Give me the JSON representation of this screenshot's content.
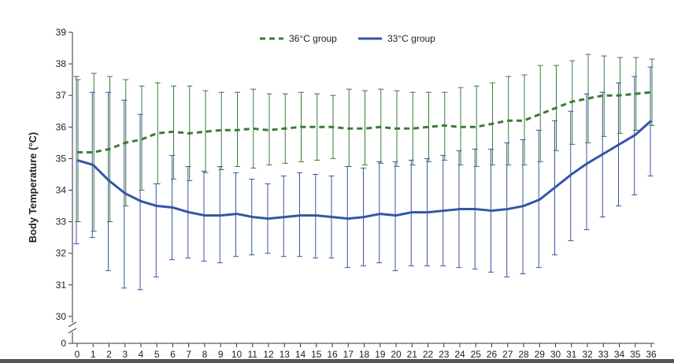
{
  "chart_data": {
    "type": "line",
    "title": "",
    "xlabel": "",
    "ylabel": "Body Temperature (°C)",
    "x": [
      0,
      1,
      2,
      3,
      4,
      5,
      6,
      7,
      8,
      9,
      10,
      11,
      12,
      13,
      14,
      15,
      16,
      17,
      18,
      19,
      20,
      21,
      22,
      23,
      24,
      25,
      26,
      27,
      28,
      29,
      30,
      31,
      32,
      33,
      34,
      35,
      36
    ],
    "x_tick_labels": [
      "0",
      "1",
      "2",
      "3",
      "4",
      "5",
      "6",
      "7",
      "8",
      "9",
      "10",
      "11",
      "12",
      "13",
      "14",
      "15",
      "16",
      "17",
      "18",
      "19",
      "20",
      "21",
      "22",
      "23",
      "24",
      "25",
      "26",
      "27",
      "28",
      "29",
      "30",
      "31",
      "32",
      "33",
      "34",
      "35",
      "36"
    ],
    "y_tick_labels": [
      "0",
      "30",
      "31",
      "32",
      "33",
      "34",
      "35",
      "36",
      "37",
      "38",
      "39"
    ],
    "ylim": [
      30,
      39
    ],
    "y_axis_break": true,
    "grid": false,
    "legend_position": "top-center",
    "series": [
      {
        "name": "36°C group",
        "color": "#3d7a3a",
        "style": "dashed",
        "values": [
          35.2,
          35.2,
          35.3,
          35.5,
          35.6,
          35.8,
          35.85,
          35.8,
          35.85,
          35.9,
          35.9,
          35.95,
          35.9,
          35.95,
          36.0,
          36.0,
          36.0,
          35.95,
          35.95,
          36.0,
          35.95,
          35.95,
          36.0,
          36.05,
          36.0,
          36.0,
          36.1,
          36.2,
          36.2,
          36.4,
          36.6,
          36.8,
          36.9,
          37.0,
          37.0,
          37.05,
          37.1
        ],
        "lower": [
          33.0,
          32.7,
          33.0,
          33.5,
          34.0,
          34.2,
          34.35,
          34.3,
          34.55,
          34.65,
          34.75,
          34.7,
          34.8,
          34.85,
          34.9,
          34.95,
          35.0,
          34.75,
          34.8,
          34.85,
          34.75,
          34.8,
          34.9,
          34.95,
          34.8,
          34.75,
          34.8,
          34.8,
          34.8,
          34.9,
          35.25,
          35.45,
          35.5,
          35.7,
          35.8,
          35.9,
          36.05
        ],
        "upper": [
          37.5,
          37.7,
          37.6,
          37.5,
          37.3,
          37.4,
          37.3,
          37.3,
          37.15,
          37.1,
          37.1,
          37.2,
          37.05,
          37.05,
          37.1,
          37.05,
          37.0,
          37.2,
          37.15,
          37.2,
          37.15,
          37.1,
          37.1,
          37.1,
          37.25,
          37.3,
          37.4,
          37.6,
          37.65,
          37.95,
          37.95,
          38.1,
          38.3,
          38.25,
          38.2,
          38.2,
          38.15
        ]
      },
      {
        "name": "33°C group",
        "color": "#3456a4",
        "style": "solid",
        "values": [
          34.95,
          34.8,
          34.3,
          33.9,
          33.65,
          33.5,
          33.45,
          33.3,
          33.2,
          33.2,
          33.25,
          33.15,
          33.1,
          33.15,
          33.2,
          33.2,
          33.15,
          33.1,
          33.15,
          33.25,
          33.2,
          33.3,
          33.3,
          33.35,
          33.4,
          33.4,
          33.35,
          33.4,
          33.5,
          33.7,
          34.1,
          34.5,
          34.85,
          35.15,
          35.45,
          35.75,
          36.2
        ],
        "lower": [
          32.3,
          32.5,
          31.45,
          30.9,
          30.85,
          31.25,
          31.8,
          31.85,
          31.75,
          31.7,
          31.9,
          31.95,
          32.0,
          31.9,
          31.9,
          31.85,
          31.85,
          31.55,
          31.6,
          31.7,
          31.45,
          31.6,
          31.6,
          31.6,
          31.55,
          31.5,
          31.4,
          31.25,
          31.35,
          31.55,
          31.95,
          32.4,
          32.75,
          33.15,
          33.5,
          33.85,
          34.45
        ],
        "upper": [
          37.6,
          37.1,
          37.1,
          36.85,
          36.4,
          34.2,
          35.1,
          34.75,
          34.6,
          34.75,
          34.55,
          34.35,
          34.2,
          34.45,
          34.55,
          34.5,
          34.45,
          34.75,
          34.7,
          34.9,
          34.9,
          34.95,
          35.0,
          35.1,
          35.25,
          35.3,
          35.3,
          35.5,
          35.6,
          35.9,
          36.2,
          36.5,
          37.05,
          37.1,
          37.4,
          37.6,
          37.9
        ]
      }
    ]
  }
}
